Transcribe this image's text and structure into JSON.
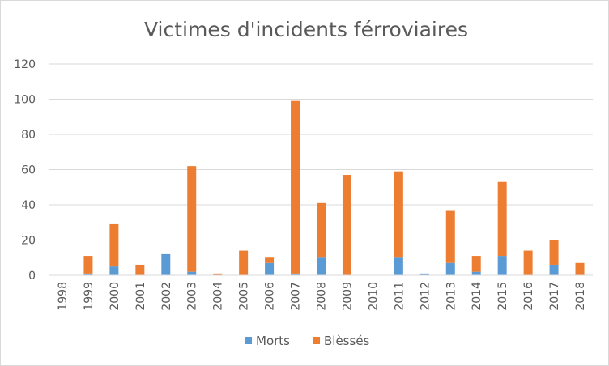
{
  "chart_data": {
    "type": "bar",
    "stacked": true,
    "title": "Victimes d'incidents férroviaires",
    "xlabel": "",
    "ylabel": "",
    "ylim": [
      0,
      120
    ],
    "yticks": [
      0,
      20,
      40,
      60,
      80,
      100,
      120
    ],
    "grid": true,
    "legend_position": "bottom",
    "categories": [
      "1998",
      "1999",
      "2000",
      "2001",
      "2002",
      "2003",
      "2004",
      "2005",
      "2006",
      "2007",
      "2008",
      "2009",
      "2010",
      "2011",
      "2012",
      "2013",
      "2014",
      "2015",
      "2016",
      "2017",
      "2018"
    ],
    "series": [
      {
        "name": "Morts",
        "color": "#5b9bd5",
        "values": [
          0,
          1,
          5,
          0,
          12,
          2,
          0,
          0,
          7,
          1,
          10,
          0,
          0,
          10,
          1,
          7,
          2,
          11,
          0,
          6,
          0
        ]
      },
      {
        "name": "Blèssés",
        "color": "#ed7d31",
        "values": [
          0,
          10,
          24,
          6,
          0,
          60,
          1,
          14,
          3,
          98,
          31,
          57,
          0,
          49,
          0,
          30,
          9,
          42,
          14,
          14,
          7
        ]
      }
    ]
  }
}
